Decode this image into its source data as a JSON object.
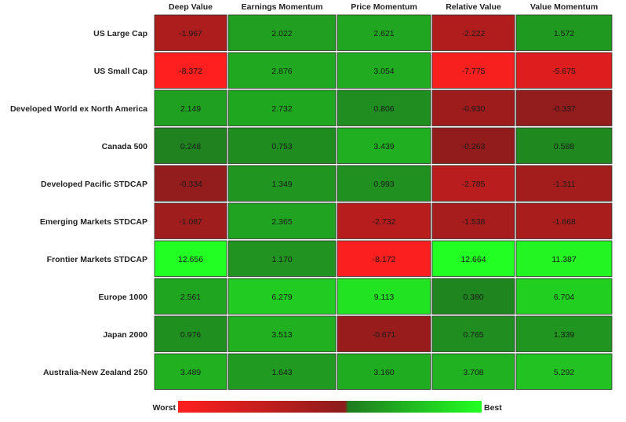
{
  "chart_data": {
    "type": "heatmap",
    "columns": [
      "Deep Value",
      "Earnings Momentum",
      "Price Momentum",
      "Relative Value",
      "Value Momentum"
    ],
    "rows": [
      {
        "label": "US Large Cap",
        "values": [
          "-1.967",
          "2.022",
          "2.621",
          "-2.222",
          "1.572"
        ]
      },
      {
        "label": "US Small Cap",
        "values": [
          "-8.372",
          "2.876",
          "3.054",
          "-7.775",
          "-5.675"
        ]
      },
      {
        "label": "Developed World ex North America",
        "values": [
          "2.149",
          "2.732",
          "0.806",
          "-0.930",
          "-0.337"
        ]
      },
      {
        "label": "Canada 500",
        "values": [
          "0.248",
          "0.753",
          "3.439",
          "-0.263",
          "0.588"
        ]
      },
      {
        "label": "Developed Pacific STDCAP",
        "values": [
          "-0.334",
          "1.349",
          "0.993",
          "-2.785",
          "-1.311"
        ]
      },
      {
        "label": "Emerging Markets STDCAP",
        "values": [
          "-1.087",
          "2.365",
          "-2.732",
          "-1.538",
          "-1.668"
        ]
      },
      {
        "label": "Frontier Markets STDCAP",
        "values": [
          "12.656",
          "1.170",
          "-8.172",
          "12.664",
          "11.387"
        ]
      },
      {
        "label": "Europe 1000",
        "values": [
          "2.561",
          "6.279",
          "9.113",
          "0.380",
          "6.704"
        ]
      },
      {
        "label": "Japan 2000",
        "values": [
          "0.976",
          "3.513",
          "-0.671",
          "0.765",
          "1.339"
        ]
      },
      {
        "label": "Australia-New Zealand 250",
        "values": [
          "3.489",
          "1.643",
          "3.160",
          "3.708",
          "5.292"
        ]
      }
    ],
    "legend": {
      "min_label": "Worst",
      "max_label": "Best",
      "placement": "bottom"
    },
    "colors": {
      "worst": "#ff1f1f",
      "neg_dark": "#8c1c1c",
      "pos_dark": "#1f7a1f",
      "best": "#22ff22"
    }
  }
}
